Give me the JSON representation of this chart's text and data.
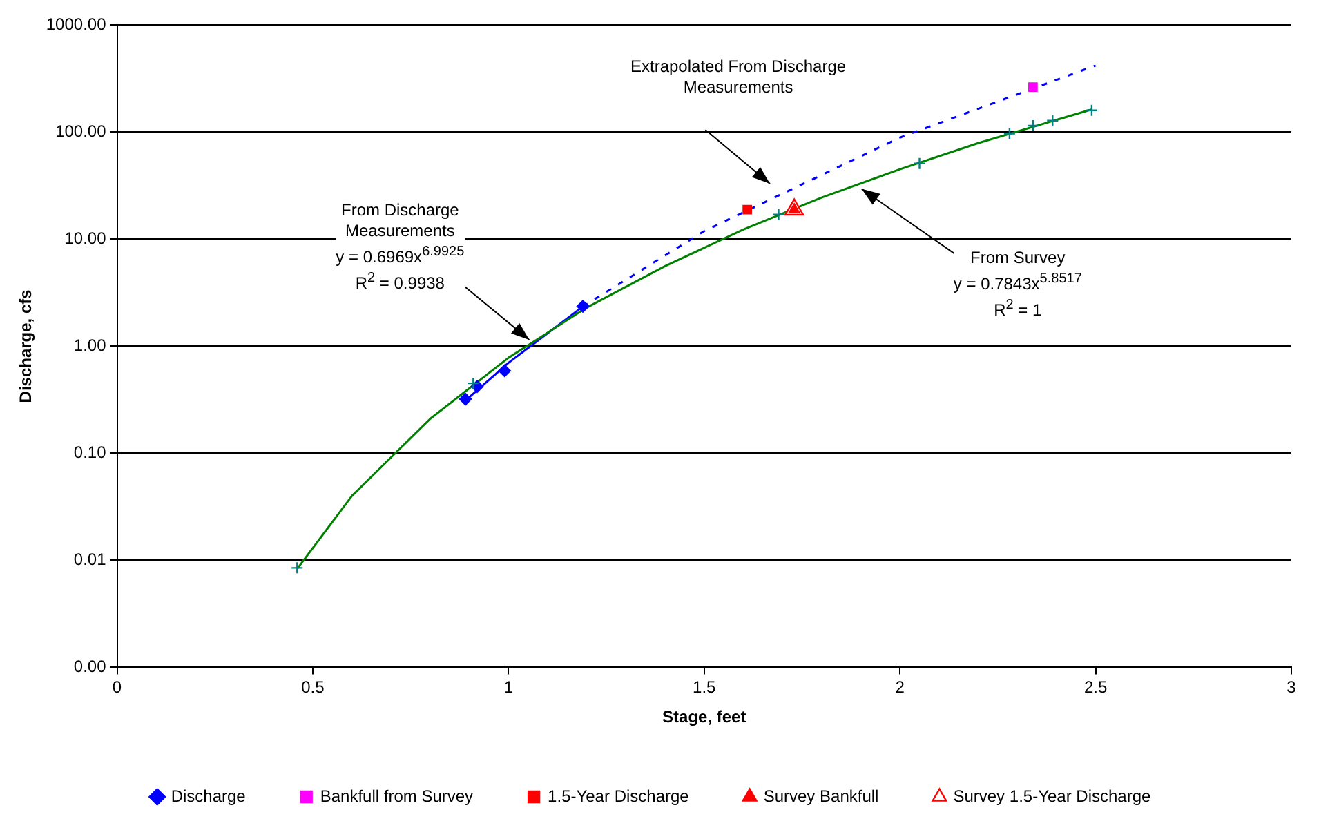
{
  "chart_data": {
    "type": "scatter",
    "xlabel": "Stage, feet",
    "ylabel": "Discharge, cfs",
    "xlim": [
      0,
      3
    ],
    "xticks": [
      0,
      0.5,
      1,
      1.5,
      2,
      2.5,
      3
    ],
    "ylim": [
      0.001,
      1000
    ],
    "yticks": [
      {
        "value": 0.001,
        "label": "0.00"
      },
      {
        "value": 0.01,
        "label": "0.01"
      },
      {
        "value": 0.1,
        "label": "0.10"
      },
      {
        "value": 1,
        "label": "1.00"
      },
      {
        "value": 10,
        "label": "10.00"
      },
      {
        "value": 100,
        "label": "100.00"
      },
      {
        "value": 1000,
        "label": "1000.00"
      }
    ],
    "log": "y",
    "grid": "y",
    "legend": "bottom",
    "series": [
      {
        "type": "line",
        "color": "#008000",
        "marker": "none",
        "line_style": "solid",
        "x": [
          0.46,
          0.6,
          0.8,
          1.0,
          1.2,
          1.4,
          1.6,
          1.8,
          2.0,
          2.2,
          2.49
        ],
        "values": [
          0.0083,
          0.04,
          0.21,
          0.78,
          2.3,
          5.6,
          12.3,
          24.5,
          45,
          79,
          163
        ]
      },
      {
        "type": "line",
        "color": "#0000ff",
        "marker": "none",
        "line_style": "dashed",
        "x": [
          1.19,
          1.5,
          2.0,
          2.5
        ],
        "values": [
          2.35,
          11.9,
          89,
          420
        ]
      },
      {
        "type": "line",
        "color": "#0000ff",
        "marker": "none",
        "line_style": "solid",
        "x": [
          0.89,
          1.0,
          1.19
        ],
        "values": [
          0.31,
          0.7,
          2.35
        ]
      },
      {
        "type": "scatter",
        "color": "#008080",
        "marker": "cross",
        "x": [
          0.46,
          0.91,
          1.69,
          2.05,
          2.28,
          2.34,
          2.39,
          2.49
        ],
        "values": [
          0.0085,
          0.45,
          17,
          51,
          97,
          115,
          128,
          160
        ]
      },
      {
        "type": "scatter",
        "name": "Discharge",
        "color": "#0000ff",
        "marker": "diamond",
        "x": [
          0.89,
          0.92,
          0.99,
          1.19
        ],
        "values": [
          0.32,
          0.42,
          0.59,
          2.36
        ]
      },
      {
        "type": "scatter",
        "name": "Bankfull from Survey",
        "color": "#ff00ff",
        "marker": "square",
        "x": [
          2.34
        ],
        "values": [
          264
        ]
      },
      {
        "type": "scatter",
        "name": "1.5-Year Discharge",
        "color": "#ff0000",
        "marker": "square",
        "x": [
          1.61
        ],
        "values": [
          18.9
        ]
      },
      {
        "type": "scatter",
        "name": "Survey Bankfull",
        "color": "#ff0000",
        "marker": "triangle",
        "x": [
          1.73
        ],
        "values": [
          18.9
        ]
      },
      {
        "type": "scatter",
        "name": "Survey 1.5-Year Discharge",
        "color": "#ff0000",
        "marker": "triangle",
        "x": [
          1.73
        ],
        "values": [
          18.9
        ]
      }
    ],
    "annotations": [
      "Extrapolated From Discharge\nMeasurements",
      "From Discharge\nMeasurements\ny = 0.6969x$^{6.9925}$\nR$^{2}$ = 0.9938",
      "From Survey\ny = 0.7843x$^{5.8517}$\nR$^{2}$ = 1"
    ]
  }
}
